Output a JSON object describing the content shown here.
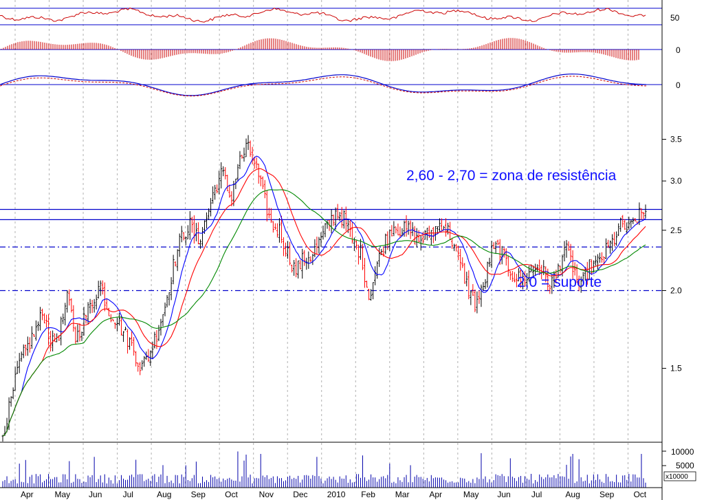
{
  "chart_data": {
    "type": "candlestick",
    "x_months": [
      "Apr",
      "May",
      "Jun",
      "Jul",
      "Aug",
      "Sep",
      "Oct",
      "Nov",
      "Dec",
      "2010",
      "Feb",
      "Mar",
      "Apr",
      "May",
      "Jun",
      "Jul",
      "Aug",
      "Sep",
      "Oct"
    ],
    "price_axis": {
      "scale": "log",
      "ylim": [
        1.15,
        3.9
      ],
      "ticks": [
        "3.5",
        "3.0",
        "2.5",
        "2.0",
        "1.5"
      ],
      "tick_values": [
        3.5,
        3.0,
        2.5,
        2.0,
        1.5
      ]
    },
    "indicator_panels": [
      {
        "tick": "50",
        "type": "oscillator-line"
      },
      {
        "tick": "0",
        "type": "histogram"
      },
      {
        "tick": "0",
        "type": "macd-lines"
      }
    ],
    "volume_axis": {
      "ticks": [
        "10000",
        "5000"
      ],
      "multiplier_label": "x10000"
    },
    "price_path": [
      1.18,
      1.32,
      1.52,
      1.62,
      1.72,
      1.85,
      1.63,
      1.72,
      1.95,
      1.67,
      1.8,
      1.92,
      2.05,
      1.85,
      1.8,
      1.7,
      1.62,
      1.5,
      1.58,
      1.72,
      1.9,
      2.2,
      2.45,
      2.55,
      2.4,
      2.6,
      2.9,
      3.1,
      2.8,
      3.2,
      3.4,
      3.2,
      2.85,
      2.55,
      2.5,
      2.3,
      2.15,
      2.25,
      2.28,
      2.4,
      2.55,
      2.68,
      2.6,
      2.4,
      2.3,
      1.95,
      2.2,
      2.4,
      2.55,
      2.5,
      2.5,
      2.4,
      2.45,
      2.5,
      2.58,
      2.45,
      2.25,
      2.05,
      1.9,
      2.0,
      2.3,
      2.35,
      2.2,
      2.1,
      2.08,
      2.15,
      2.2,
      2.05,
      2.1,
      2.35,
      2.2,
      2.0,
      2.18,
      2.2,
      2.3,
      2.4,
      2.55,
      2.5,
      2.62,
      2.68
    ],
    "lines": [
      {
        "name": "2,60 - 2,70 = zona de resistência",
        "value": 2.7,
        "style": "solid"
      },
      {
        "name": "resistance-lower",
        "value": 2.6,
        "style": "solid"
      },
      {
        "name": "dash-upper",
        "value": 2.35,
        "style": "dashdot"
      },
      {
        "name": "2,0 = suporte",
        "value": 2.0,
        "style": "dashdot"
      }
    ],
    "moving_averages": [
      {
        "color": "#0000ff",
        "period": 10
      },
      {
        "color": "#ff0000",
        "period": 20
      },
      {
        "color": "#008800",
        "period": 40
      }
    ],
    "annotations": {
      "resistance": "2,60 - 2,70 = zona de resistência",
      "support": "2,0 = suporte"
    }
  },
  "colors": {
    "up": "#000000",
    "down": "#ff0000",
    "reference_line": "#0000cc",
    "volume": "#0000aa",
    "grid": "#b0b0b0",
    "annotation": "#1010ff"
  }
}
